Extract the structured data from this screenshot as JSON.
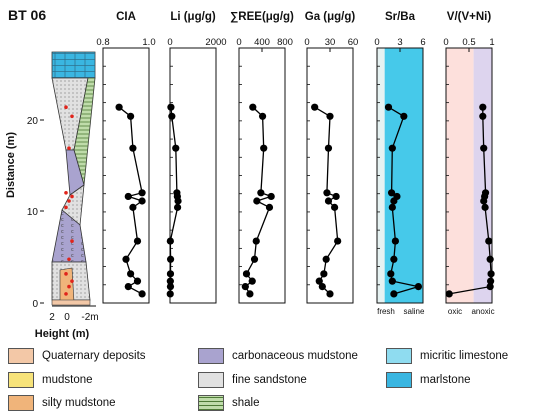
{
  "title": "BT 06",
  "chart_data": {
    "type": "line",
    "title": "BT 06",
    "ylabel": "Distance (m)",
    "ylim": [
      0,
      28
    ],
    "y_ticks": [
      "0",
      "10",
      "20"
    ],
    "column": {
      "xlabel": "Height (m)",
      "x_ticks": [
        "2",
        "0",
        "-2m"
      ]
    },
    "samples_y": [
      1,
      1.8,
      2.4,
      3.2,
      4.8,
      6.8,
      10.5,
      11.2,
      11.7,
      12.1,
      17,
      20.5,
      21.5
    ],
    "panels": [
      {
        "name": "CIA",
        "xlim": [
          0.8,
          1.0
        ],
        "x_ticks": [
          "0.8",
          "1.0"
        ],
        "points": [
          [
            0.97,
            1
          ],
          [
            0.91,
            1.8
          ],
          [
            0.95,
            2.4
          ],
          [
            0.92,
            3.2
          ],
          [
            0.9,
            4.8
          ],
          [
            0.95,
            6.8
          ],
          [
            0.93,
            10.5
          ],
          [
            0.97,
            11.2
          ],
          [
            0.91,
            11.7
          ],
          [
            0.97,
            12.1
          ],
          [
            0.93,
            17
          ],
          [
            0.92,
            20.5
          ],
          [
            0.87,
            21.5
          ]
        ]
      },
      {
        "name": "Li (μg/g)",
        "xlim": [
          0,
          2000
        ],
        "x_ticks": [
          "0",
          "2000"
        ],
        "points": [
          [
            10,
            1
          ],
          [
            20,
            1.8
          ],
          [
            15,
            2.4
          ],
          [
            20,
            3.2
          ],
          [
            25,
            4.8
          ],
          [
            15,
            6.8
          ],
          [
            330,
            10.5
          ],
          [
            350,
            11.2
          ],
          [
            320,
            11.7
          ],
          [
            300,
            12.1
          ],
          [
            250,
            17
          ],
          [
            80,
            20.5
          ],
          [
            40,
            21.5
          ]
        ]
      },
      {
        "name": "∑REE(μg/g)",
        "xlim": [
          0,
          800
        ],
        "x_ticks": [
          "0",
          "400",
          "800"
        ],
        "points": [
          [
            190,
            1
          ],
          [
            110,
            1.8
          ],
          [
            230,
            2.4
          ],
          [
            130,
            3.2
          ],
          [
            270,
            4.8
          ],
          [
            300,
            6.8
          ],
          [
            530,
            10.5
          ],
          [
            310,
            11.2
          ],
          [
            560,
            11.7
          ],
          [
            380,
            12.1
          ],
          [
            430,
            17
          ],
          [
            410,
            20.5
          ],
          [
            240,
            21.5
          ]
        ]
      },
      {
        "name": "Ga (μg/g)",
        "xlim": [
          0,
          60
        ],
        "x_ticks": [
          "0",
          "30",
          "60"
        ],
        "points": [
          [
            30,
            1
          ],
          [
            20,
            1.8
          ],
          [
            16,
            2.4
          ],
          [
            22,
            3.2
          ],
          [
            25,
            4.8
          ],
          [
            40,
            6.8
          ],
          [
            36,
            10.5
          ],
          [
            28,
            11.2
          ],
          [
            38,
            11.7
          ],
          [
            26,
            12.1
          ],
          [
            28,
            17
          ],
          [
            30,
            20.5
          ],
          [
            10,
            21.5
          ]
        ]
      },
      {
        "name": "Sr/Ba",
        "xlim": [
          0,
          6
        ],
        "x_ticks": [
          "0",
          "3",
          "6"
        ],
        "x_annotations": [
          "fresh",
          "saline"
        ],
        "points": [
          [
            2.2,
            1
          ],
          [
            5.4,
            1.8
          ],
          [
            2,
            2.4
          ],
          [
            1.8,
            3.2
          ],
          [
            2.2,
            4.8
          ],
          [
            2.4,
            6.8
          ],
          [
            2,
            10.5
          ],
          [
            2.2,
            11.2
          ],
          [
            2.6,
            11.7
          ],
          [
            1.9,
            12.1
          ],
          [
            2,
            17
          ],
          [
            3.5,
            20.5
          ],
          [
            1.5,
            21.5
          ]
        ]
      },
      {
        "name": "V/(V+Ni)",
        "xlim": [
          0,
          1
        ],
        "x_ticks": [
          "0",
          "0.5",
          "1"
        ],
        "x_annotations": [
          "oxic",
          "anoxic"
        ],
        "points": [
          [
            0.07,
            1
          ],
          [
            0.96,
            1.8
          ],
          [
            0.97,
            2.4
          ],
          [
            0.98,
            3.2
          ],
          [
            0.96,
            4.8
          ],
          [
            0.93,
            6.8
          ],
          [
            0.85,
            10.5
          ],
          [
            0.82,
            11.2
          ],
          [
            0.84,
            11.7
          ],
          [
            0.86,
            12.1
          ],
          [
            0.82,
            17
          ],
          [
            0.8,
            20.5
          ],
          [
            0.8,
            21.5
          ]
        ]
      }
    ]
  },
  "legend": [
    {
      "label": "Quaternary deposits",
      "color": "#f3c8a7",
      "icon": "dot-pattern"
    },
    {
      "label": "mudstone",
      "color": "#f7e37a",
      "icon": "dash-pattern"
    },
    {
      "label": "silty mudstone",
      "color": "#f0b47a",
      "icon": "dot-dash-pattern"
    },
    {
      "label": "carbonaceous mudstone",
      "color": "#a9a3cf",
      "icon": "c-pattern"
    },
    {
      "label": "fine sandstone",
      "color": "#e1e1e1",
      "icon": "dot-pattern"
    },
    {
      "label": "shale",
      "color": "#bfdcaa",
      "icon": "line-pattern"
    },
    {
      "label": "micritic limestone",
      "color": "#8fdcf0",
      "icon": "brick-pattern"
    },
    {
      "label": "marlstone",
      "color": "#3ab6e1",
      "icon": "brick-pattern"
    }
  ],
  "colors": {
    "sr_ba_fill": "#46c9ea",
    "fresh_zone": "#e6f2f2",
    "oxic_zone": "#fde0dc",
    "anoxic_zone": "#ddd4ee",
    "marker": "#e0241b",
    "line": "#000000"
  }
}
